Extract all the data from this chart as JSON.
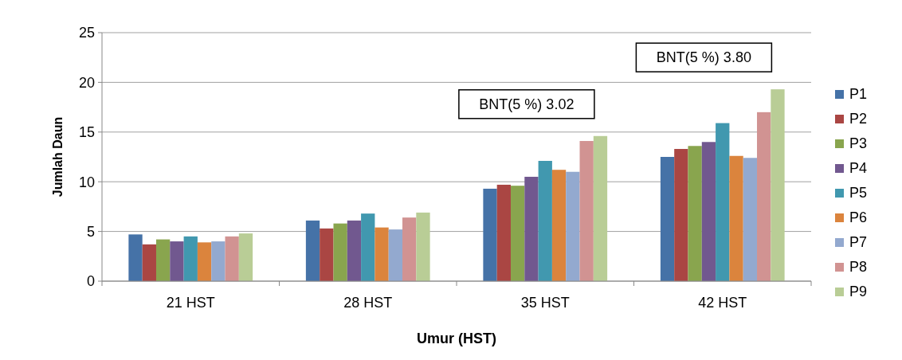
{
  "chart_data": {
    "type": "bar",
    "xlabel": "Umur (HST)",
    "ylabel": "Jumlah Daun",
    "categories": [
      "21 HST",
      "28 HST",
      "35 HST",
      "42 HST"
    ],
    "series": [
      {
        "name": "P1",
        "color": "#4572a7",
        "values": [
          4.7,
          6.1,
          9.3,
          12.5
        ]
      },
      {
        "name": "P2",
        "color": "#aa4643",
        "values": [
          3.7,
          5.3,
          9.7,
          13.3
        ]
      },
      {
        "name": "P3",
        "color": "#89a54e",
        "values": [
          4.2,
          5.8,
          9.6,
          13.6
        ]
      },
      {
        "name": "P4",
        "color": "#71588f",
        "values": [
          4.0,
          6.1,
          10.5,
          14.0
        ]
      },
      {
        "name": "P5",
        "color": "#4198af",
        "values": [
          4.5,
          6.8,
          12.1,
          15.9
        ]
      },
      {
        "name": "P6",
        "color": "#db843d",
        "values": [
          3.9,
          5.4,
          11.2,
          12.6
        ]
      },
      {
        "name": "P7",
        "color": "#93a9cf",
        "values": [
          4.0,
          5.2,
          11.0,
          12.4
        ]
      },
      {
        "name": "P8",
        "color": "#d19392",
        "values": [
          4.5,
          6.4,
          14.1,
          17.0
        ]
      },
      {
        "name": "P9",
        "color": "#b9cd96",
        "values": [
          4.8,
          6.9,
          14.6,
          19.3
        ]
      }
    ],
    "ylim": [
      0,
      25
    ],
    "yticks": [
      0,
      5,
      10,
      15,
      20,
      25
    ],
    "grid": "y",
    "legend": "right",
    "annotations": [
      "BNT(5 %) 3.02",
      "BNT(5 %) 3.80"
    ]
  }
}
